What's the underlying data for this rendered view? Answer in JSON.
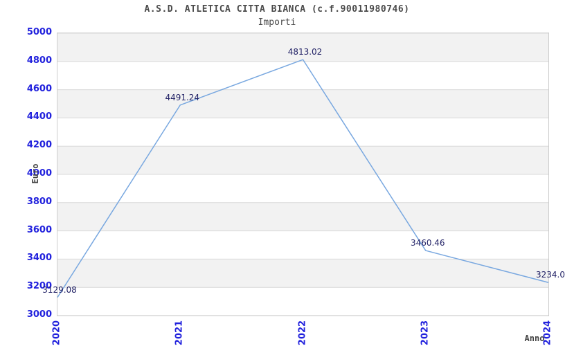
{
  "chart_data": {
    "type": "line",
    "title": "A.S.D. ATLETICA CITTA BIANCA (c.f.90011980746)",
    "subtitle": "Importi",
    "xlabel": "Anno",
    "ylabel": "Euro",
    "categories": [
      "2020",
      "2021",
      "2022",
      "2023",
      "2024"
    ],
    "series": [
      {
        "name": "Importi",
        "values": [
          3129.08,
          4491.24,
          4813.02,
          3460.46,
          3234.0
        ],
        "point_labels": [
          "3129.08",
          "4491.24",
          "4813.02",
          "3460.46",
          "3234.0"
        ]
      }
    ],
    "ylim": [
      3000,
      5000
    ],
    "yticks": [
      3000,
      3200,
      3400,
      3600,
      3800,
      4000,
      4200,
      4400,
      4600,
      4800,
      5000
    ],
    "grid": "horizontal-only",
    "band_fill": "alternating-horizontal",
    "legend": "none",
    "colors": {
      "line": "#79a8e0",
      "tick_label": "#2222dd",
      "point_label": "#222266",
      "band_gray": "#f2f2f2",
      "band_white": "#ffffff",
      "gridline": "#d8d8d8",
      "plot_border": "#cccccc",
      "title_text": "#4a4a4a"
    }
  }
}
